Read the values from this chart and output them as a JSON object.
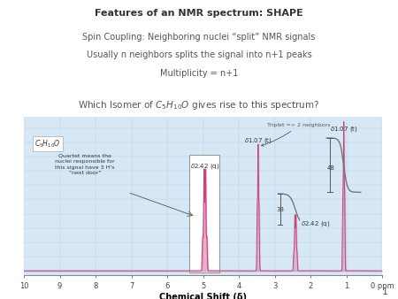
{
  "title_bold": "Features of an NMR spectrum: SHAPE",
  "line2": "Spin Coupling: Neighboring nuclei “split” NMR signals",
  "line3": "Usually n neighbors splits the signal into n+1 peaks",
  "line4": "Multiplicity = n+1",
  "line5": "Which Isomer of C₅H₁₀O gives rise to this spectrum?",
  "page_bg": "#ffffff",
  "plot_bg": "#d6e8f5",
  "grid_color": "#b8d0e8",
  "pink": "#c8457a",
  "pink_fill": "#d4639a",
  "ann_color": "#555555",
  "dark_text": "#333333",
  "xlabel": "Chemical Shift (δ)",
  "slide_number": "1",
  "triplet_label_above": "Triplet => 2 neighbors",
  "c5h10o_label": "C₅H₁₀O",
  "quartet_ann": "Quartet means the\nnuclei responsible for\nthis signal have 3 H's\n\"next door\"",
  "delta1": "δ1.07 (t)",
  "delta2": "δ2.42 (q)",
  "int_48": "48",
  "int_33": "33"
}
